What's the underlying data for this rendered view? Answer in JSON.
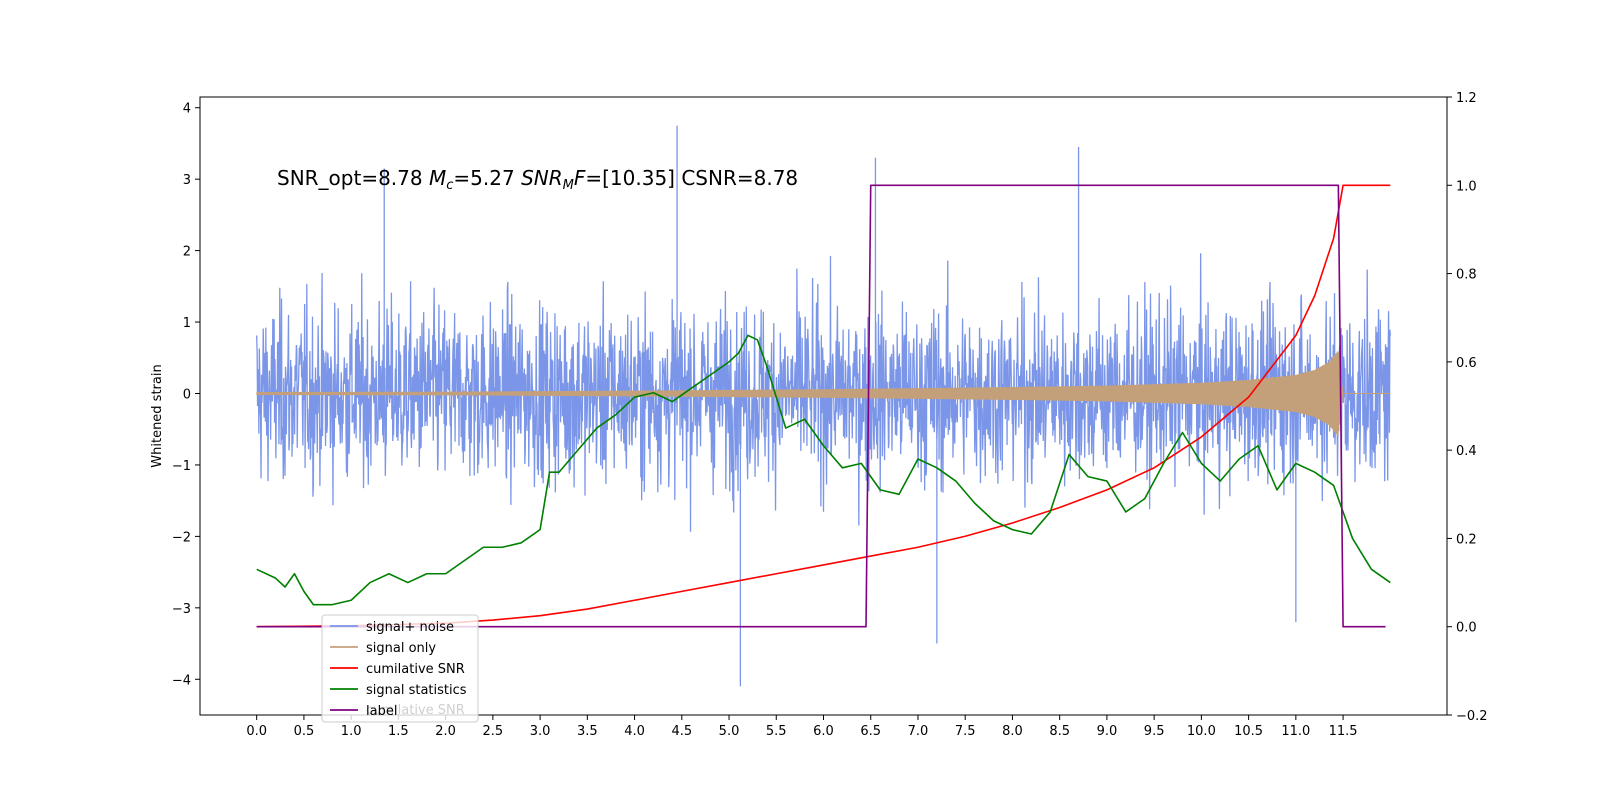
{
  "chart_data": {
    "type": "line",
    "title": "",
    "annotation": {
      "parts": [
        {
          "text": "SNR_opt=8.78   ",
          "style": "normal"
        },
        {
          "text": "M",
          "style": "italic"
        },
        {
          "text": "c",
          "style": "italic-sub"
        },
        {
          "text": "=5.27    ",
          "style": "normal"
        },
        {
          "text": "SNR",
          "style": "italic"
        },
        {
          "text": "M",
          "style": "italic-sub"
        },
        {
          "text": "F",
          "style": "italic"
        },
        {
          "text": "=[10.35] CSNR=8.78",
          "style": "normal"
        }
      ]
    },
    "xlabel": "",
    "ylabel": "Whitened strain",
    "y2label": "",
    "xlim": [
      -0.6,
      12.6
    ],
    "ylim": [
      -4.5,
      4.15
    ],
    "y2lim": [
      -0.2,
      1.2
    ],
    "x_ticks": [
      "0.0",
      "0.5",
      "1.0",
      "1.5",
      "2.0",
      "2.5",
      "3.0",
      "3.5",
      "4.0",
      "4.5",
      "5.0",
      "5.5",
      "6.0",
      "6.5",
      "7.0",
      "7.5",
      "8.0",
      "8.5",
      "9.0",
      "9.5",
      "10.0",
      "10.5",
      "11.0",
      "11.5"
    ],
    "y_ticks": [
      "4",
      "3",
      "2",
      "1",
      "0",
      "−1",
      "−2",
      "−3",
      "−4"
    ],
    "y2_ticks": [
      "1.2",
      "1.0",
      "0.8",
      "0.6",
      "0.4",
      "0.2",
      "0.0",
      "−0.2"
    ],
    "grid": false,
    "legend_placement": "lower-left",
    "series": [
      {
        "name": "signal+ noise",
        "axis": "left",
        "color": "#7b96e8",
        "style": "dense noise trace",
        "x_range": [
          0,
          12.0
        ],
        "approx_band": [
          -2.0,
          2.1
        ],
        "spikes": [
          [
            4.45,
            3.75
          ],
          [
            5.12,
            -4.1
          ],
          [
            8.7,
            3.45
          ],
          [
            7.2,
            -3.5
          ],
          [
            11.0,
            -3.2
          ],
          [
            1.35,
            3.15
          ],
          [
            6.55,
            3.3
          ]
        ]
      },
      {
        "name": "signal only",
        "axis": "left",
        "color": "#c4a07a",
        "style": "chirp envelope",
        "x": [
          0,
          2,
          4,
          6,
          7,
          8,
          9,
          9.5,
          10,
          10.5,
          11,
          11.2,
          11.35,
          11.45,
          11.5,
          12.0
        ],
        "amplitude": [
          0.02,
          0.025,
          0.04,
          0.06,
          0.075,
          0.09,
          0.11,
          0.13,
          0.15,
          0.19,
          0.26,
          0.33,
          0.44,
          0.6,
          0.0,
          0.0
        ]
      },
      {
        "name": "cumilative SNR",
        "axis": "right",
        "color": "#ff0000",
        "x": [
          0,
          1.0,
          2.0,
          2.5,
          3.0,
          3.5,
          4.0,
          4.5,
          5.0,
          5.5,
          6.0,
          6.5,
          7.0,
          7.5,
          8.0,
          8.5,
          9.0,
          9.5,
          10.0,
          10.5,
          11.0,
          11.2,
          11.4,
          11.5,
          12.0
        ],
        "values": [
          0.0,
          0.002,
          0.008,
          0.015,
          0.025,
          0.04,
          0.06,
          0.08,
          0.1,
          0.12,
          0.14,
          0.16,
          0.18,
          0.205,
          0.235,
          0.27,
          0.31,
          0.36,
          0.43,
          0.52,
          0.66,
          0.75,
          0.88,
          1.0,
          1.0
        ]
      },
      {
        "name": "signal statistics",
        "axis": "right",
        "color": "#008000",
        "x": [
          0,
          0.2,
          0.3,
          0.4,
          0.5,
          0.6,
          0.8,
          1.0,
          1.2,
          1.4,
          1.6,
          1.8,
          2.0,
          2.2,
          2.4,
          2.6,
          2.8,
          3.0,
          3.1,
          3.2,
          3.4,
          3.6,
          3.8,
          4.0,
          4.2,
          4.4,
          4.6,
          4.8,
          5.0,
          5.1,
          5.2,
          5.3,
          5.4,
          5.6,
          5.8,
          6.0,
          6.2,
          6.4,
          6.6,
          6.8,
          7.0,
          7.2,
          7.4,
          7.6,
          7.8,
          8.0,
          8.2,
          8.4,
          8.6,
          8.8,
          9.0,
          9.2,
          9.4,
          9.6,
          9.8,
          10.0,
          10.2,
          10.4,
          10.6,
          10.8,
          11.0,
          11.2,
          11.4,
          11.6,
          11.8,
          12.0
        ],
        "values": [
          0.13,
          0.11,
          0.09,
          0.12,
          0.08,
          0.05,
          0.05,
          0.06,
          0.1,
          0.12,
          0.1,
          0.12,
          0.12,
          0.15,
          0.18,
          0.18,
          0.19,
          0.22,
          0.35,
          0.35,
          0.4,
          0.45,
          0.48,
          0.52,
          0.53,
          0.51,
          0.54,
          0.57,
          0.6,
          0.62,
          0.66,
          0.65,
          0.59,
          0.45,
          0.47,
          0.41,
          0.36,
          0.37,
          0.31,
          0.3,
          0.38,
          0.36,
          0.33,
          0.28,
          0.24,
          0.22,
          0.21,
          0.26,
          0.39,
          0.34,
          0.33,
          0.26,
          0.29,
          0.37,
          0.44,
          0.37,
          0.33,
          0.38,
          0.41,
          0.31,
          0.37,
          0.35,
          0.32,
          0.2,
          0.13,
          0.1
        ]
      },
      {
        "name": "label",
        "axis": "right",
        "color": "#800080",
        "x": [
          0,
          6.45,
          6.5,
          11.45,
          11.5,
          11.95
        ],
        "values": [
          0,
          0,
          1,
          1,
          0,
          0
        ]
      }
    ],
    "legend_ghost_text": "cumilative SNR"
  }
}
